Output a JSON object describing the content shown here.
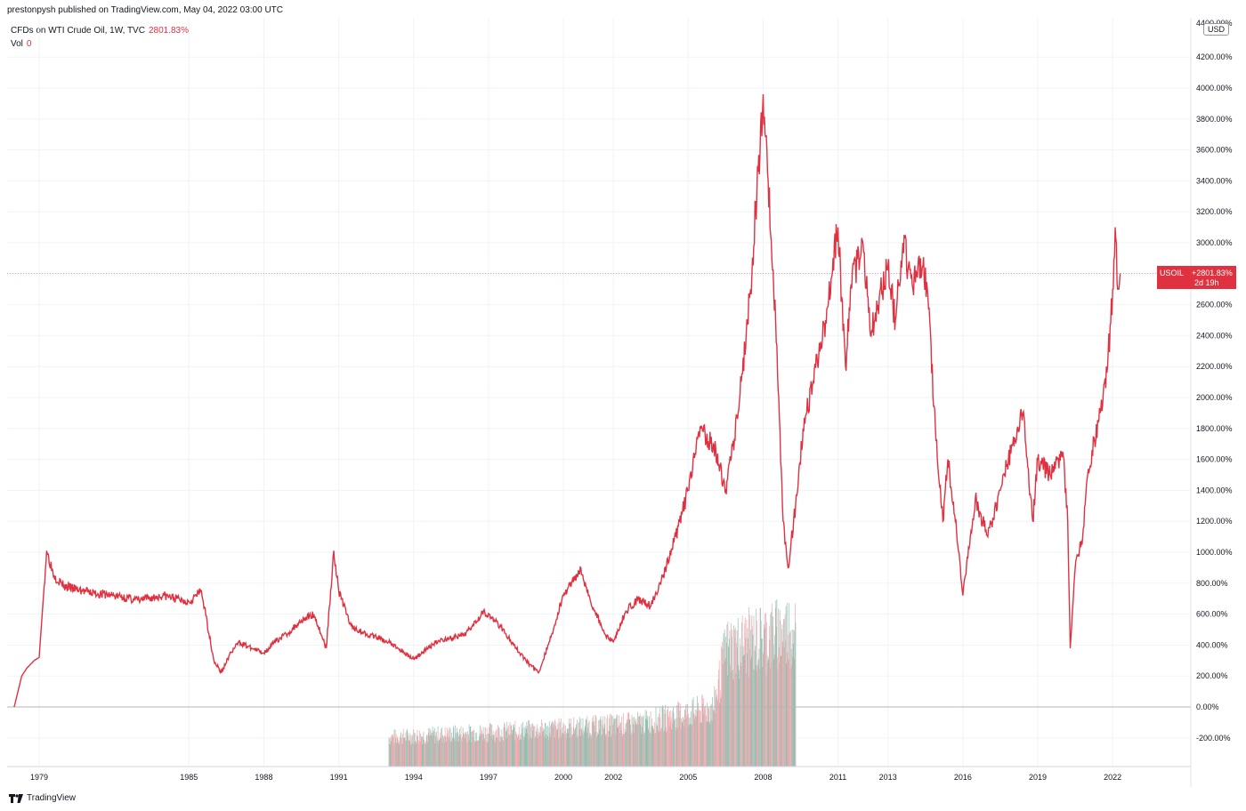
{
  "header": {
    "published_line": "prestonpysh published on TradingView.com, May 04, 2022 03:00 UTC"
  },
  "legend": {
    "series_label": "CFDs on WTI Crude Oil, 1W, TVC",
    "series_value": "2801.83%",
    "volume_label": "Vol",
    "volume_value": "0"
  },
  "price_axis": {
    "currency": "USD",
    "top_label": "4400.00%"
  },
  "last_price": {
    "symbol": "USOIL",
    "value": "+2801.83%",
    "countdown": "2d 19h"
  },
  "footer": {
    "brand": "TradingView"
  },
  "colors": {
    "line": "#e03140",
    "volume_up": "#8fc2b3",
    "volume_down": "#f0a7ad",
    "grid": "#f0f3fa",
    "zero_line": "#b2b5be"
  },
  "chart_data": {
    "type": "line",
    "y_unit": "percent change",
    "ylim": [
      -400,
      4400
    ],
    "y_ticks": [
      -200,
      0,
      200,
      400,
      600,
      800,
      1000,
      1200,
      1400,
      1600,
      1800,
      2000,
      2200,
      2400,
      2600,
      2800,
      3000,
      3200,
      3400,
      3600,
      3800,
      4000,
      4200
    ],
    "y_tick_labels": [
      "-200.00%",
      "0.00%",
      "200.00%",
      "400.00%",
      "600.00%",
      "800.00%",
      "1000.00%",
      "1200.00%",
      "1400.00%",
      "1600.00%",
      "1800.00%",
      "2000.00%",
      "2200.00%",
      "2400.00%",
      "2600.00%",
      "2800.00%",
      "3000.00%",
      "3200.00%",
      "3400.00%",
      "3600.00%",
      "3800.00%",
      "4000.00%",
      "4200.00%"
    ],
    "x_ticks": [
      "1979",
      "1985",
      "1988",
      "1991",
      "1994",
      "1997",
      "2000",
      "2002",
      "2005",
      "2008",
      "2011",
      "2013",
      "2016",
      "2019",
      "2022"
    ],
    "x_tick_years": [
      1979,
      1985,
      1988,
      1991,
      1994,
      1997,
      2000,
      2002,
      2005,
      2008,
      2011,
      2013,
      2016,
      2019,
      2022
    ],
    "xlim": [
      1978.0,
      2022.6
    ],
    "grid": true,
    "series": [
      {
        "values_x": [
          1978.0,
          1978.3,
          1978.5,
          1978.8,
          1979.0,
          1979.3,
          1979.6,
          1980.0,
          1980.5,
          1981.0,
          1982.0,
          1983.0,
          1984.0,
          1984.5,
          1985.0,
          1985.5,
          1986.0,
          1986.3,
          1986.6,
          1987.0,
          1987.5,
          1988.0,
          1988.5,
          1989.0,
          1989.5,
          1990.0,
          1990.5,
          1990.8,
          1991.0,
          1991.5,
          1992.0,
          1993.0,
          1994.0,
          1995.0,
          1996.0,
          1996.8,
          1997.5,
          1998.0,
          1998.5,
          1999.0,
          1999.5,
          2000.0,
          2000.7,
          2001.0,
          2001.7,
          2002.0,
          2002.5,
          2003.0,
          2003.5,
          2004.0,
          2004.5,
          2005.0,
          2005.5,
          2006.0,
          2006.5,
          2007.0,
          2007.5,
          2008.0,
          2008.5,
          2008.8,
          2009.0,
          2009.3,
          2009.6,
          2010.0,
          2010.5,
          2011.0,
          2011.3,
          2011.5,
          2012.0,
          2012.3,
          2012.6,
          2013.0,
          2013.3,
          2013.6,
          2014.0,
          2014.3,
          2014.6,
          2014.9,
          2015.2,
          2015.4,
          2015.7,
          2016.0,
          2016.5,
          2017.0,
          2017.5,
          2018.0,
          2018.4,
          2018.8,
          2019.0,
          2019.5,
          2020.0,
          2020.2,
          2020.3,
          2020.5,
          2020.8,
          2021.0,
          2021.5,
          2021.8,
          2022.0,
          2022.1,
          2022.2,
          2022.3
        ],
        "values_y": [
          0,
          200,
          250,
          300,
          320,
          1010,
          850,
          780,
          760,
          740,
          720,
          690,
          720,
          700,
          680,
          750,
          300,
          220,
          330,
          420,
          380,
          350,
          430,
          480,
          560,
          600,
          380,
          1010,
          750,
          520,
          480,
          420,
          310,
          430,
          460,
          620,
          520,
          400,
          300,
          220,
          450,
          720,
          900,
          720,
          460,
          420,
          620,
          700,
          650,
          850,
          1100,
          1400,
          1800,
          1700,
          1400,
          1900,
          2700,
          3960,
          2500,
          1200,
          900,
          1300,
          1800,
          2100,
          2500,
          3100,
          2200,
          2700,
          3000,
          2400,
          2600,
          2850,
          2500,
          3000,
          2700,
          2900,
          2650,
          1800,
          1200,
          1600,
          1200,
          720,
          1350,
          1100,
          1400,
          1700,
          1900,
          1200,
          1600,
          1500,
          1650,
          1200,
          380,
          900,
          1100,
          1500,
          1900,
          2200,
          2700,
          3100,
          2700,
          2801.83
        ]
      }
    ],
    "volume": {
      "start_year": 1993.0,
      "end_year": 2009.3,
      "levels": [
        [
          1993.0,
          190
        ],
        [
          1999.0,
          240
        ],
        [
          2003.0,
          280
        ],
        [
          2006.0,
          380
        ],
        [
          2006.5,
          760
        ],
        [
          2009.3,
          900
        ]
      ]
    }
  }
}
